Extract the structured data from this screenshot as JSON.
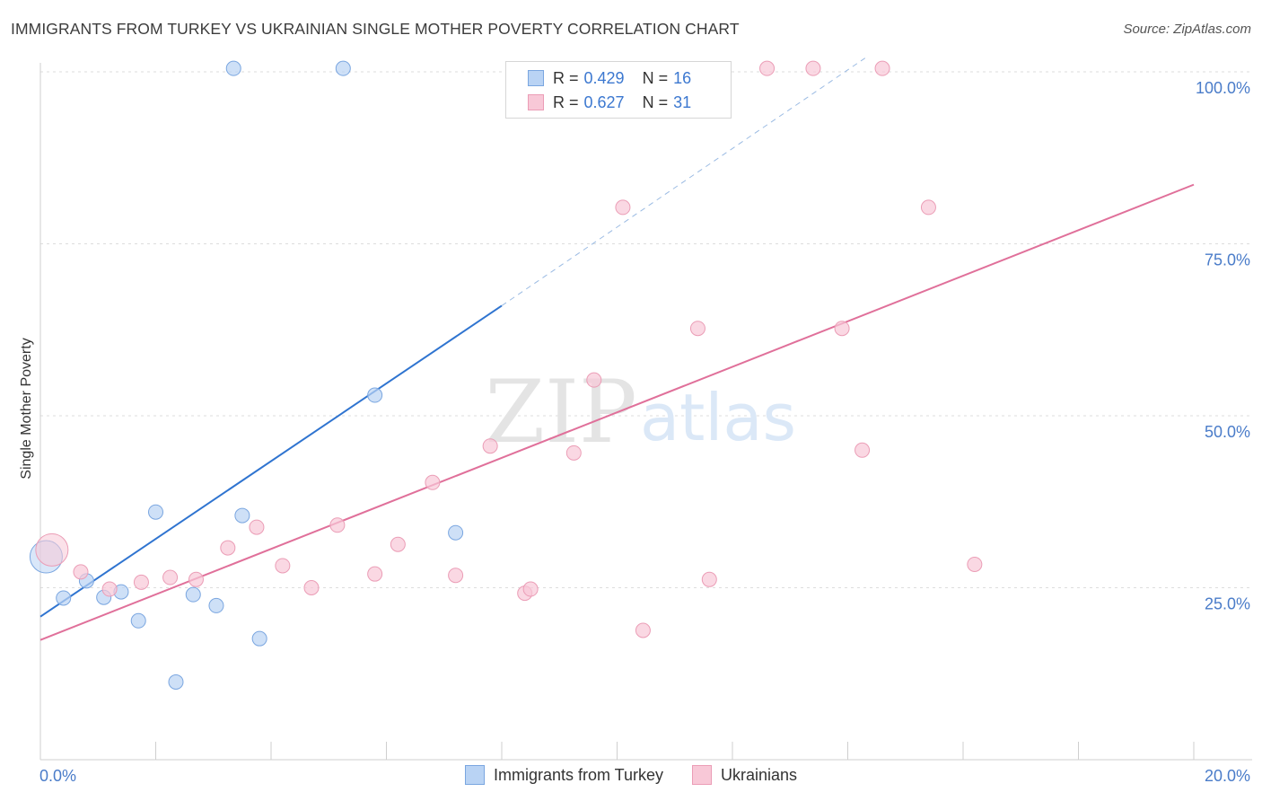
{
  "title": "IMMIGRANTS FROM TURKEY VS UKRAINIAN SINGLE MOTHER POVERTY CORRELATION CHART",
  "source": "Source: ZipAtlas.com",
  "watermark": {
    "zip": "ZIP",
    "atlas": "atlas"
  },
  "colors": {
    "blue_fill": "#b9d3f4",
    "blue_stroke": "#7aa6e0",
    "blue_line": "#2f74d0",
    "pink_fill": "#f8c8d7",
    "pink_stroke": "#eb9db6",
    "pink_line": "#e0709a",
    "grid": "#dddddd",
    "tick_text": "#4a7cc9"
  },
  "legend": {
    "rows": [
      {
        "r_label": "R =",
        "r_value": "0.429",
        "n_label": "N =",
        "n_value": "16",
        "series": "blue"
      },
      {
        "r_label": "R =",
        "r_value": "0.627",
        "n_label": "N =",
        "n_value": "31",
        "series": "pink"
      }
    ],
    "bottom": [
      "Immigrants from Turkey",
      "Ukrainians"
    ]
  },
  "chart_data": {
    "type": "scatter",
    "xlabel": "",
    "ylabel": "Single Mother Poverty",
    "xlim": [
      0,
      20
    ],
    "ylim": [
      0,
      102
    ],
    "x_tick_labels": [
      {
        "value": 0,
        "label": "0.0%"
      },
      {
        "value": 20,
        "label": "20.0%"
      }
    ],
    "y_tick_labels": [
      {
        "value": 25,
        "label": "25.0%"
      },
      {
        "value": 50,
        "label": "50.0%"
      },
      {
        "value": 75,
        "label": "75.0%"
      },
      {
        "value": 100,
        "label": "100.0%"
      }
    ],
    "y_gridlines": [
      25,
      50,
      75,
      100
    ],
    "x_minor_ticks": [
      2,
      4,
      6,
      8,
      10,
      12,
      14,
      16,
      18
    ],
    "series": [
      {
        "name": "Immigrants from Turkey",
        "color": "blue",
        "points": [
          {
            "x": 0.1,
            "y": 29.5,
            "big": true
          },
          {
            "x": 0.4,
            "y": 23.5
          },
          {
            "x": 0.8,
            "y": 26.0
          },
          {
            "x": 1.1,
            "y": 23.6
          },
          {
            "x": 1.4,
            "y": 24.4
          },
          {
            "x": 1.7,
            "y": 20.2
          },
          {
            "x": 2.0,
            "y": 36.0
          },
          {
            "x": 2.35,
            "y": 11.3
          },
          {
            "x": 2.65,
            "y": 24.0
          },
          {
            "x": 3.05,
            "y": 22.4
          },
          {
            "x": 3.35,
            "y": 100.5
          },
          {
            "x": 3.5,
            "y": 35.5
          },
          {
            "x": 3.8,
            "y": 17.6
          },
          {
            "x": 5.25,
            "y": 100.5
          },
          {
            "x": 5.8,
            "y": 53.0
          },
          {
            "x": 7.2,
            "y": 33.0
          }
        ],
        "trend": {
          "x0": 0,
          "y0": 20.8,
          "x1": 8.0,
          "y1": 66.0
        },
        "trend_dashed": {
          "x0": 8.0,
          "y0": 66.0,
          "x1": 14.3,
          "y1": 102.0
        }
      },
      {
        "name": "Ukrainians",
        "color": "pink",
        "points": [
          {
            "x": 0.2,
            "y": 30.5,
            "big": true
          },
          {
            "x": 0.7,
            "y": 27.3
          },
          {
            "x": 1.2,
            "y": 24.8
          },
          {
            "x": 1.75,
            "y": 25.8
          },
          {
            "x": 2.25,
            "y": 26.5
          },
          {
            "x": 2.7,
            "y": 26.2
          },
          {
            "x": 3.25,
            "y": 30.8
          },
          {
            "x": 3.75,
            "y": 33.8
          },
          {
            "x": 4.2,
            "y": 28.2
          },
          {
            "x": 4.7,
            "y": 25.0
          },
          {
            "x": 5.15,
            "y": 34.1
          },
          {
            "x": 5.8,
            "y": 27.0
          },
          {
            "x": 6.2,
            "y": 31.3
          },
          {
            "x": 6.8,
            "y": 40.3
          },
          {
            "x": 7.2,
            "y": 26.8
          },
          {
            "x": 7.8,
            "y": 45.6
          },
          {
            "x": 8.4,
            "y": 24.2
          },
          {
            "x": 8.5,
            "y": 24.8
          },
          {
            "x": 9.25,
            "y": 44.6
          },
          {
            "x": 9.6,
            "y": 55.2
          },
          {
            "x": 10.1,
            "y": 80.3
          },
          {
            "x": 10.45,
            "y": 18.8
          },
          {
            "x": 11.4,
            "y": 62.7
          },
          {
            "x": 11.6,
            "y": 26.2
          },
          {
            "x": 12.6,
            "y": 100.5
          },
          {
            "x": 13.4,
            "y": 100.5
          },
          {
            "x": 13.9,
            "y": 62.7
          },
          {
            "x": 14.25,
            "y": 45.0
          },
          {
            "x": 14.6,
            "y": 100.5
          },
          {
            "x": 15.4,
            "y": 80.3
          },
          {
            "x": 16.2,
            "y": 28.4
          }
        ],
        "trend": {
          "x0": 0,
          "y0": 17.4,
          "x1": 20,
          "y1": 83.6
        }
      }
    ]
  }
}
